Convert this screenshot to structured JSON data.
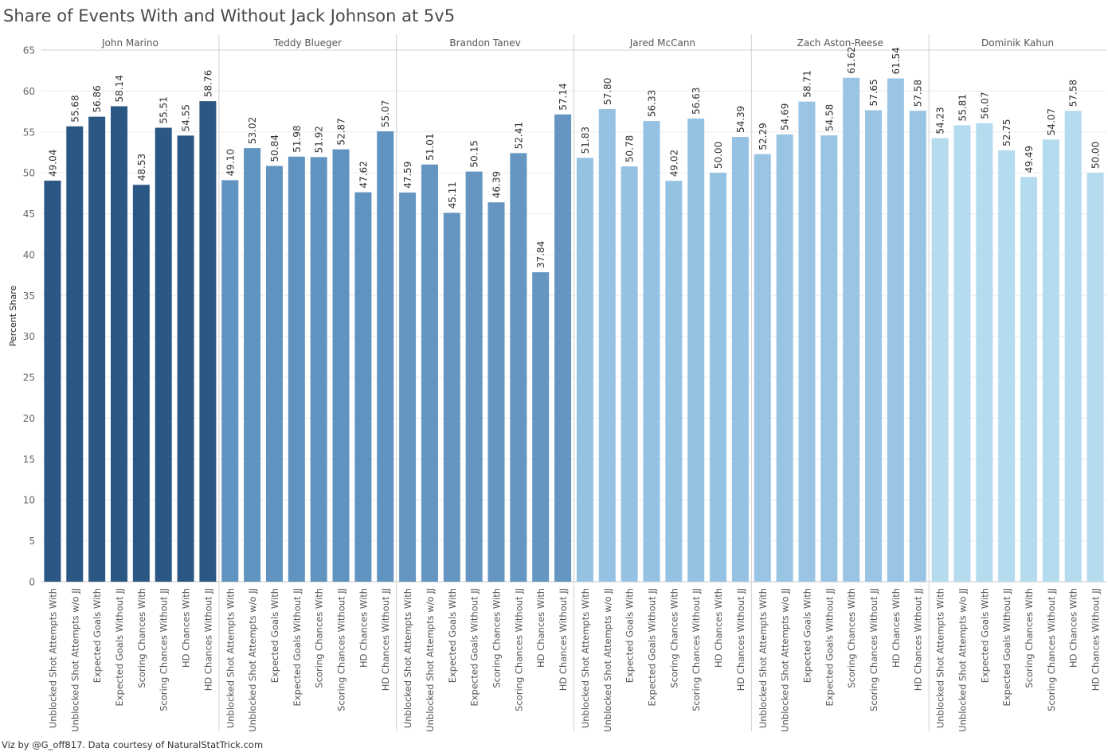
{
  "footer_text": "Viz by @G_off817. Data courtesy of NaturalStatTrick.com",
  "chart_data": {
    "type": "bar",
    "title": "Share of Events With and Without Jack Johnson at 5v5",
    "ylabel": "Percent Share",
    "xlabel": "",
    "ylim": [
      0,
      65
    ],
    "yticks": [
      0,
      5,
      10,
      15,
      20,
      25,
      30,
      35,
      40,
      45,
      50,
      55,
      60,
      65
    ],
    "grid": true,
    "legend": "none",
    "categories": [
      "Unblocked Shot Attempts With",
      "Unblocked Shot Attempts w/o JJ",
      "Expected Goals With",
      "Expected Goals Without JJ",
      "Scoring Chances With",
      "Scoring Chances Without JJ",
      "HD Chances With",
      "HD Chances Without JJ"
    ],
    "panels": [
      {
        "player": "John Marino",
        "color": "#2a5783",
        "values": [
          49.04,
          55.68,
          56.86,
          58.14,
          48.53,
          55.51,
          54.55,
          58.76
        ]
      },
      {
        "player": "Teddy Blueger",
        "color": "#6193c0",
        "values": [
          49.1,
          53.02,
          50.84,
          51.98,
          51.92,
          52.87,
          47.62,
          55.07
        ]
      },
      {
        "player": "Brandon Tanev",
        "color": "#6496c1",
        "values": [
          47.59,
          51.01,
          45.11,
          50.15,
          46.39,
          52.41,
          37.84,
          57.14
        ]
      },
      {
        "player": "Jared McCann",
        "color": "#95c2e3",
        "values": [
          51.83,
          57.8,
          50.78,
          56.33,
          49.02,
          56.63,
          50.0,
          54.39
        ]
      },
      {
        "player": "Zach Aston-Reese",
        "color": "#9ac4e4",
        "values": [
          52.29,
          54.69,
          58.71,
          54.58,
          61.62,
          57.65,
          61.54,
          57.58
        ]
      },
      {
        "player": "Dominik Kahun",
        "color": "#b5dbef",
        "values": [
          54.23,
          55.81,
          56.07,
          52.75,
          49.49,
          54.07,
          57.58,
          50.0
        ]
      }
    ]
  }
}
